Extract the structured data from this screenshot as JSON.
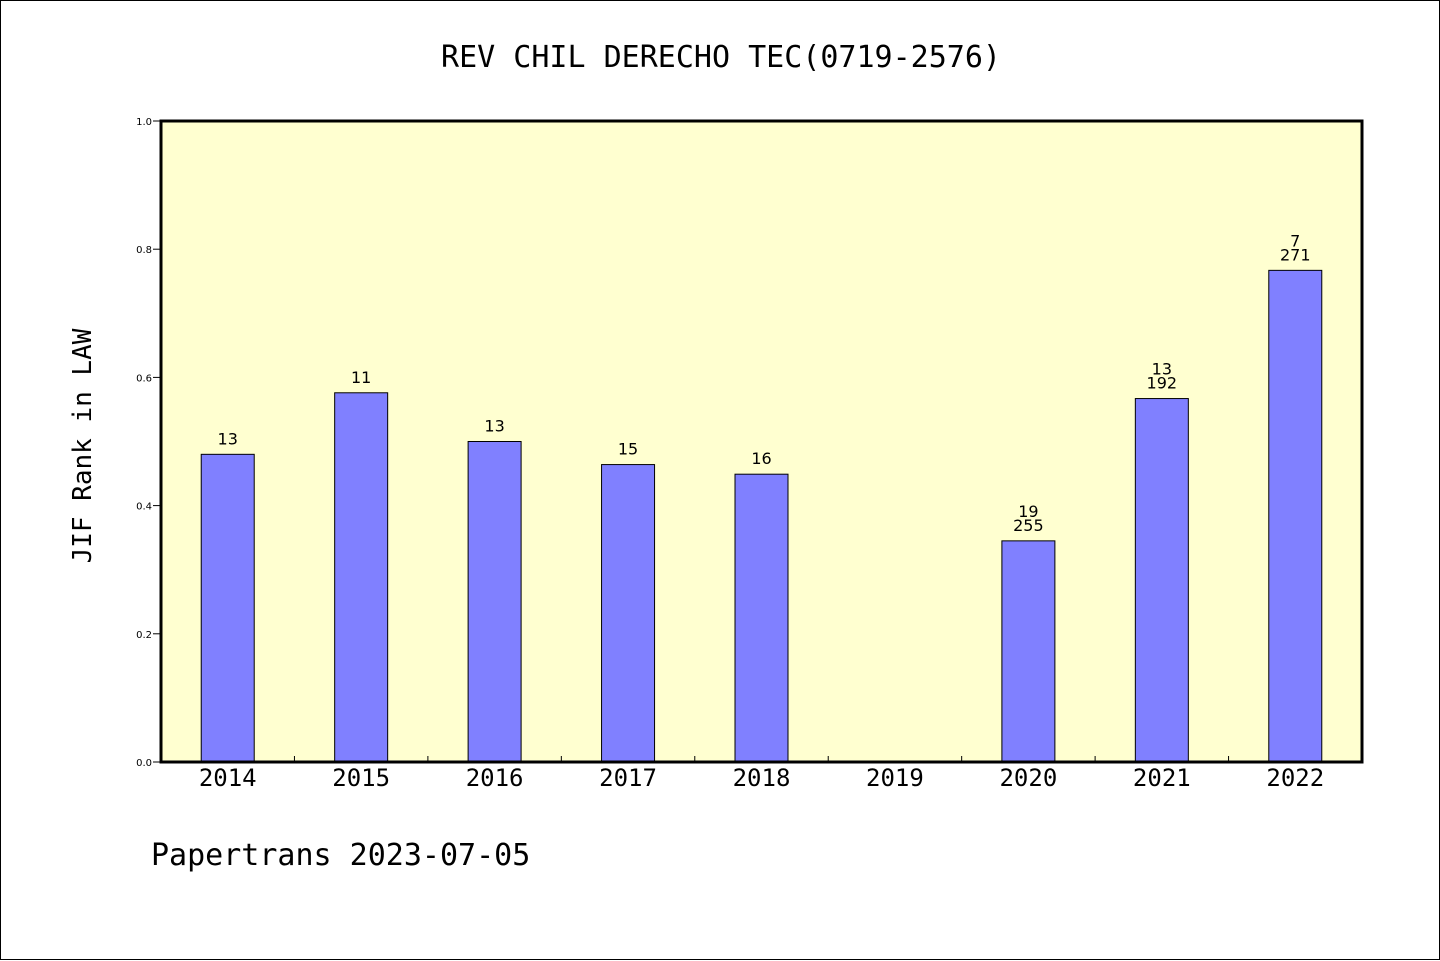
{
  "chart_data": {
    "type": "bar",
    "title": "REV CHIL DERECHO TEC(0719-2576)",
    "ylabel": "JIF Rank in LAW",
    "xlabel": "",
    "categories": [
      "2014",
      "2015",
      "2016",
      "2017",
      "2018",
      "2019",
      "2020",
      "2021",
      "2022"
    ],
    "values": [
      0.48,
      0.576,
      0.5,
      0.464,
      0.449,
      null,
      0.345,
      0.567,
      0.767
    ],
    "bar_labels": [
      [
        "13"
      ],
      [
        "11"
      ],
      [
        "13"
      ],
      [
        "15"
      ],
      [
        "16"
      ],
      [],
      [
        "19",
        "255"
      ],
      [
        "13",
        "192"
      ],
      [
        "7",
        "271"
      ]
    ],
    "ylim": [
      0,
      1.0
    ],
    "yticks": [
      "0.0",
      "0.2",
      "0.4",
      "0.6",
      "0.8",
      "1.0"
    ],
    "grid": false,
    "colors": {
      "plot_background": "#ffffd0",
      "bar_fill": "#8080ff",
      "bar_stroke": "#000000"
    }
  },
  "footer": "Papertrans 2023-07-05"
}
